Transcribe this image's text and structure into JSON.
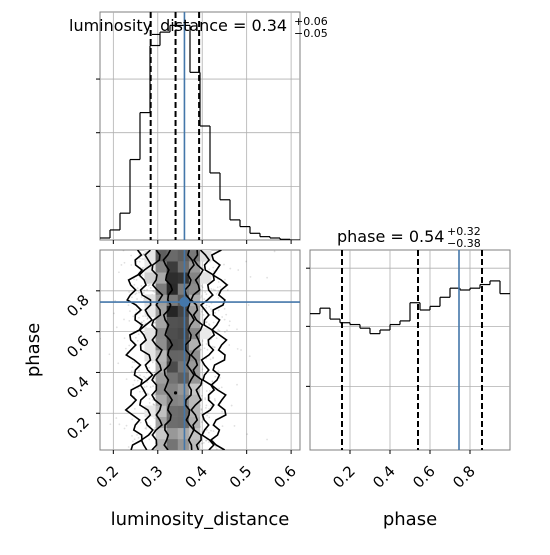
{
  "chart_data": {
    "type": "corner",
    "parameters": [
      "luminosity_distance",
      "phase"
    ],
    "truth_color": "#4477aa",
    "truths": {
      "luminosity_distance": 0.36,
      "phase": 0.745
    },
    "panels": {
      "hist_luminosity_distance": {
        "type": "histogram",
        "title_name": "luminosity_distance = 0.34",
        "title_sup": "+0.06",
        "title_sub": "−0.05",
        "median": 0.34,
        "quantile_lines": [
          0.284,
          0.34,
          0.393
        ],
        "truth": 0.36,
        "xlim": [
          0.17,
          0.62
        ],
        "bin_edges": [
          0.17,
          0.1925,
          0.215,
          0.2375,
          0.26,
          0.2825,
          0.305,
          0.3275,
          0.35,
          0.3725,
          0.395,
          0.4175,
          0.44,
          0.4625,
          0.485,
          0.5075,
          0.53,
          0.5525,
          0.575,
          0.5975,
          0.62
        ],
        "counts": [
          0.3,
          1.5,
          4,
          12,
          19,
          29,
          31,
          32,
          32,
          25,
          17,
          10,
          6,
          3,
          2,
          1,
          0.5,
          0.3,
          0.1,
          0
        ],
        "ylim": [
          0,
          34
        ]
      },
      "hist_phase": {
        "type": "histogram",
        "title_name": "phase = 0.54",
        "title_sup": "+0.32",
        "title_sub": "−0.38",
        "median": 0.54,
        "quantile_lines": [
          0.16,
          0.54,
          0.86
        ],
        "truth": 0.745,
        "xlim": [
          0.0,
          1.0
        ],
        "bin_edges": [
          0.0,
          0.05,
          0.1,
          0.15,
          0.2,
          0.25,
          0.3,
          0.35,
          0.4,
          0.45,
          0.5,
          0.55,
          0.6,
          0.65,
          0.7,
          0.75,
          0.8,
          0.85,
          0.9,
          0.95,
          1.0
        ],
        "counts": [
          0.75,
          0.78,
          0.72,
          0.7,
          0.69,
          0.67,
          0.64,
          0.66,
          0.69,
          0.71,
          0.81,
          0.77,
          0.79,
          0.84,
          0.89,
          0.88,
          0.89,
          0.91,
          0.93,
          0.86
        ],
        "ylim": [
          0,
          1.1
        ]
      },
      "joint": {
        "type": "2d-hist-scatter-contour",
        "x_param": "luminosity_distance",
        "y_param": "phase",
        "xlim": [
          0.17,
          0.62
        ],
        "ylim": [
          0.02,
          1.0
        ],
        "x_ticks": [
          0.2,
          0.3,
          0.4,
          0.5,
          0.6
        ],
        "y_ticks": [
          0.2,
          0.4,
          0.6,
          0.8
        ],
        "xlabel": "luminosity_distance",
        "ylabel": "phase",
        "density": {
          "x_mean": 0.343,
          "x_sd": 0.045,
          "y_shape": "weak rise toward 1.0"
        },
        "contour_levels_x_halfwidths": [
          0.024,
          0.045,
          0.07,
          0.095
        ],
        "truth_point": [
          0.36,
          0.745
        ]
      },
      "phase_axis": {
        "x_ticks": [
          0.2,
          0.4,
          0.6,
          0.8
        ],
        "xlabel": "phase"
      }
    },
    "grid": true,
    "legend": "none"
  }
}
